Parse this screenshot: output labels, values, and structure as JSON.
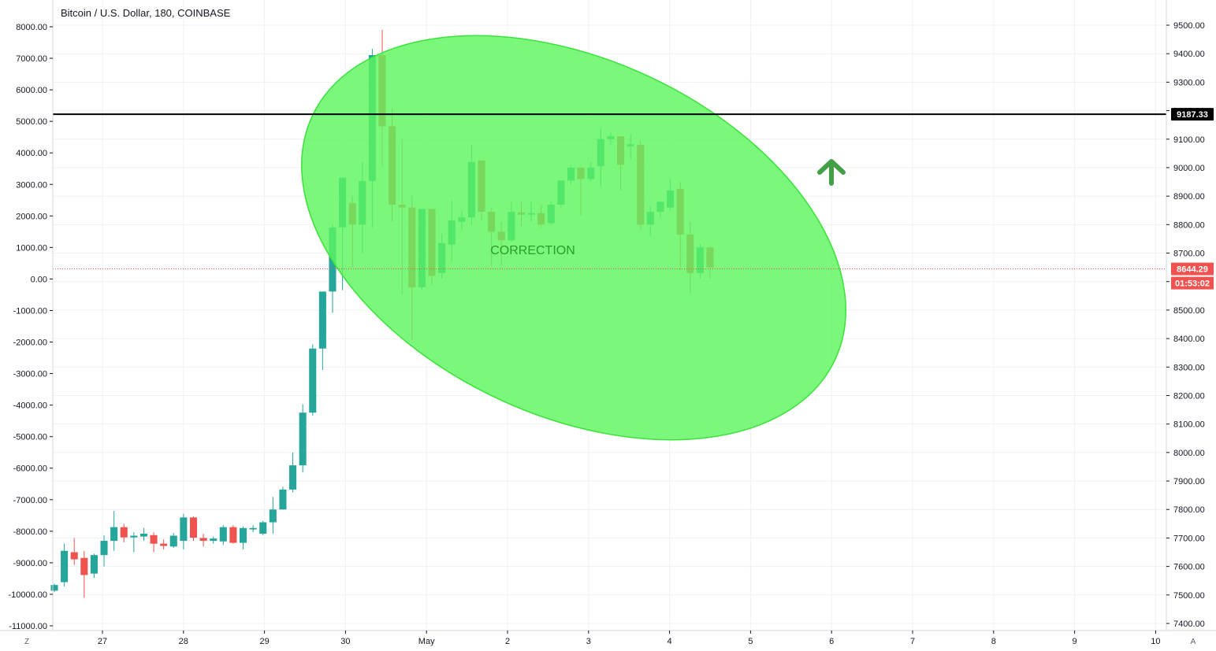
{
  "title": "Bitcoin / U.S. Dollar, 180, COINBASE",
  "annotation": "CORRECTION",
  "corner_left": "Z",
  "corner_right": "A",
  "last_price_label": "8644.29",
  "countdown_label": "01:53:02",
  "level_label": "9187.33",
  "colors": {
    "up": "#26a69a",
    "down": "#ef5350",
    "ellipse_fill": "#5ef55e",
    "ellipse_stroke": "#3be23b",
    "arrow": "#43a047",
    "level_line": "#000000",
    "last_price_line": "#ef5350",
    "grid": "#eef1f5"
  },
  "chart_data": {
    "type": "candlestick",
    "interval": "180",
    "exchange": "COINBASE",
    "x_ticks": [
      "27",
      "28",
      "29",
      "30",
      "May",
      "2",
      "3",
      "4",
      "5",
      "6",
      "7",
      "8",
      "9",
      "10"
    ],
    "y_left": {
      "ticks": [
        "8000.00",
        "7000.00",
        "6000.00",
        "5000.00",
        "4000.00",
        "3000.00",
        "2000.00",
        "1000.00",
        "0.00",
        "-1000.00",
        "-2000.00",
        "-3000.00",
        "-4000.00",
        "-5000.00",
        "-6000.00",
        "-7000.00",
        "-8000.00",
        "-9000.00",
        "-10000.00",
        "-11000.00"
      ],
      "range": [
        -11000,
        8000
      ]
    },
    "y_right": {
      "ticks": [
        "9500.00",
        "9400.00",
        "9300.00",
        "9200.00",
        "9100.00",
        "9000.00",
        "8900.00",
        "8800.00",
        "8700.00",
        "8600.00",
        "8500.00",
        "8400.00",
        "8300.00",
        "8200.00",
        "8100.00",
        "8000.00",
        "7900.00",
        "7800.00",
        "7700.00",
        "7600.00",
        "7500.00",
        "7400.00"
      ],
      "range": [
        7400,
        9500
      ]
    },
    "horizontal_level": 9187.33,
    "last_price": 8644.29,
    "candles": [
      {
        "o": 7515,
        "h": 7540,
        "l": 7510,
        "c": 7535
      },
      {
        "o": 7545,
        "h": 7680,
        "l": 7530,
        "c": 7655
      },
      {
        "o": 7650,
        "h": 7700,
        "l": 7605,
        "c": 7625
      },
      {
        "o": 7630,
        "h": 7655,
        "l": 7490,
        "c": 7570
      },
      {
        "o": 7575,
        "h": 7645,
        "l": 7560,
        "c": 7640
      },
      {
        "o": 7640,
        "h": 7710,
        "l": 7600,
        "c": 7690
      },
      {
        "o": 7690,
        "h": 7795,
        "l": 7655,
        "c": 7738
      },
      {
        "o": 7738,
        "h": 7750,
        "l": 7685,
        "c": 7702
      },
      {
        "o": 7702,
        "h": 7720,
        "l": 7650,
        "c": 7708
      },
      {
        "o": 7705,
        "h": 7735,
        "l": 7690,
        "c": 7715
      },
      {
        "o": 7710,
        "h": 7720,
        "l": 7650,
        "c": 7680
      },
      {
        "o": 7680,
        "h": 7695,
        "l": 7660,
        "c": 7672
      },
      {
        "o": 7670,
        "h": 7718,
        "l": 7665,
        "c": 7708
      },
      {
        "o": 7690,
        "h": 7785,
        "l": 7660,
        "c": 7772
      },
      {
        "o": 7772,
        "h": 7776,
        "l": 7690,
        "c": 7701
      },
      {
        "o": 7700,
        "h": 7715,
        "l": 7670,
        "c": 7690
      },
      {
        "o": 7690,
        "h": 7705,
        "l": 7680,
        "c": 7698
      },
      {
        "o": 7688,
        "h": 7745,
        "l": 7675,
        "c": 7738
      },
      {
        "o": 7738,
        "h": 7745,
        "l": 7680,
        "c": 7683
      },
      {
        "o": 7683,
        "h": 7740,
        "l": 7660,
        "c": 7735
      },
      {
        "o": 7730,
        "h": 7745,
        "l": 7720,
        "c": 7735
      },
      {
        "o": 7715,
        "h": 7760,
        "l": 7710,
        "c": 7755
      },
      {
        "o": 7755,
        "h": 7844,
        "l": 7715,
        "c": 7800
      },
      {
        "o": 7800,
        "h": 7880,
        "l": 7800,
        "c": 7870
      },
      {
        "o": 7870,
        "h": 8000,
        "l": 7860,
        "c": 7955
      },
      {
        "o": 7955,
        "h": 8170,
        "l": 7930,
        "c": 8140
      },
      {
        "o": 8140,
        "h": 8380,
        "l": 8130,
        "c": 8365
      },
      {
        "o": 8365,
        "h": 8550,
        "l": 8290,
        "c": 8565
      },
      {
        "o": 8565,
        "h": 8800,
        "l": 8490,
        "c": 8790
      },
      {
        "o": 8790,
        "h": 8890,
        "l": 8570,
        "c": 8965
      },
      {
        "o": 8875,
        "h": 8900,
        "l": 8650,
        "c": 8800
      },
      {
        "o": 8800,
        "h": 9020,
        "l": 8700,
        "c": 8953
      },
      {
        "o": 8953,
        "h": 9417,
        "l": 8790,
        "c": 9395
      },
      {
        "o": 9395,
        "h": 9484,
        "l": 9005,
        "c": 9145
      },
      {
        "o": 9145,
        "h": 9210,
        "l": 8810,
        "c": 8870
      },
      {
        "o": 8870,
        "h": 9100,
        "l": 8555,
        "c": 8860
      },
      {
        "o": 8860,
        "h": 8900,
        "l": 8395,
        "c": 8580
      },
      {
        "o": 8580,
        "h": 8847,
        "l": 8570,
        "c": 8855
      },
      {
        "o": 8855,
        "h": 8850,
        "l": 8590,
        "c": 8620
      },
      {
        "o": 8630,
        "h": 8768,
        "l": 8610,
        "c": 8735
      },
      {
        "o": 8730,
        "h": 8885,
        "l": 8670,
        "c": 8815
      },
      {
        "o": 8810,
        "h": 8850,
        "l": 8780,
        "c": 8825
      },
      {
        "o": 8825,
        "h": 9080,
        "l": 8800,
        "c": 9020
      },
      {
        "o": 9025,
        "h": 9015,
        "l": 8815,
        "c": 8845
      },
      {
        "o": 8845,
        "h": 8860,
        "l": 8655,
        "c": 8775
      },
      {
        "o": 8775,
        "h": 8810,
        "l": 8655,
        "c": 8745
      },
      {
        "o": 8745,
        "h": 8880,
        "l": 8740,
        "c": 8845
      },
      {
        "o": 8843,
        "h": 8880,
        "l": 8795,
        "c": 8835
      },
      {
        "o": 8835,
        "h": 8880,
        "l": 8810,
        "c": 8840
      },
      {
        "o": 8840,
        "h": 8870,
        "l": 8790,
        "c": 8800
      },
      {
        "o": 8805,
        "h": 8880,
        "l": 8800,
        "c": 8870
      },
      {
        "o": 8870,
        "h": 8955,
        "l": 8860,
        "c": 8955
      },
      {
        "o": 8955,
        "h": 9010,
        "l": 8940,
        "c": 9000
      },
      {
        "o": 9000,
        "h": 8975,
        "l": 8830,
        "c": 8960
      },
      {
        "o": 8960,
        "h": 9020,
        "l": 8950,
        "c": 9000
      },
      {
        "o": 9005,
        "h": 9138,
        "l": 8935,
        "c": 9100
      },
      {
        "o": 9100,
        "h": 9125,
        "l": 9080,
        "c": 9110
      },
      {
        "o": 9110,
        "h": 9090,
        "l": 8920,
        "c": 9010
      },
      {
        "o": 9075,
        "h": 9118,
        "l": 9030,
        "c": 9082
      },
      {
        "o": 9080,
        "h": 9095,
        "l": 8780,
        "c": 8800
      },
      {
        "o": 8800,
        "h": 8867,
        "l": 8760,
        "c": 8845
      },
      {
        "o": 8845,
        "h": 8880,
        "l": 8826,
        "c": 8880
      },
      {
        "o": 8860,
        "h": 8960,
        "l": 8850,
        "c": 8920
      },
      {
        "o": 8925,
        "h": 8950,
        "l": 8640,
        "c": 8765
      },
      {
        "o": 8765,
        "h": 8810,
        "l": 8560,
        "c": 8630
      },
      {
        "o": 8630,
        "h": 8732,
        "l": 8610,
        "c": 8720
      },
      {
        "o": 8720,
        "h": 8721,
        "l": 8610,
        "c": 8650
      }
    ]
  }
}
